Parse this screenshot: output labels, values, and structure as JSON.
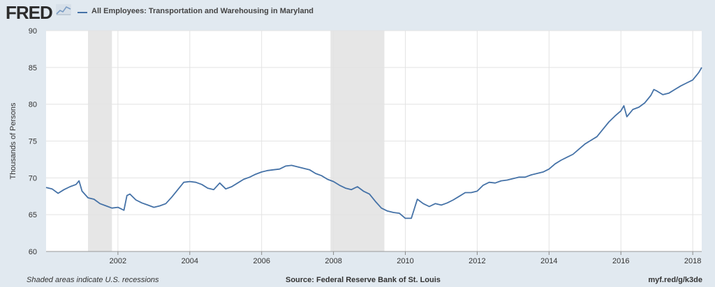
{
  "header": {
    "logo": "FRED",
    "logo_icon": "line-chart-icon"
  },
  "footer": {
    "recession_note": "Shaded areas indicate U.S. recessions",
    "source": "Source: Federal Reserve Bank of St. Louis",
    "short_url": "myf.red/g/k3de"
  },
  "colors": {
    "background": "#e1e9f0",
    "plot_background": "#ffffff",
    "series": "#4572a7",
    "recession_shade": "#e6e6e6",
    "grid": "#e3e3e3"
  },
  "chart_data": {
    "type": "line",
    "title": "",
    "xlabel": "",
    "ylabel": "Thousands of Persons",
    "ylim": [
      60,
      90
    ],
    "yticks": [
      60,
      65,
      70,
      75,
      80,
      85,
      90
    ],
    "xlim": [
      "2000-01",
      "2018-04"
    ],
    "xticks": [
      "2002",
      "2004",
      "2006",
      "2008",
      "2010",
      "2012",
      "2014",
      "2016",
      "2018"
    ],
    "grid": true,
    "legend": "top-left",
    "recessions": [
      [
        "2001-03",
        "2001-11"
      ],
      [
        "2007-12",
        "2009-06"
      ]
    ],
    "series": [
      {
        "name": "All Employees: Transportation and Warehousing in Maryland",
        "points": [
          [
            "2000-01",
            68.7
          ],
          [
            "2000-03",
            68.5
          ],
          [
            "2000-05",
            67.9
          ],
          [
            "2000-07",
            68.4
          ],
          [
            "2000-09",
            68.8
          ],
          [
            "2000-11",
            69.1
          ],
          [
            "2000-12",
            69.6
          ],
          [
            "2001-01",
            68.2
          ],
          [
            "2001-03",
            67.3
          ],
          [
            "2001-05",
            67.1
          ],
          [
            "2001-07",
            66.5
          ],
          [
            "2001-09",
            66.2
          ],
          [
            "2001-11",
            65.9
          ],
          [
            "2002-01",
            66.0
          ],
          [
            "2002-03",
            65.6
          ],
          [
            "2002-04",
            67.6
          ],
          [
            "2002-05",
            67.8
          ],
          [
            "2002-07",
            67.0
          ],
          [
            "2002-09",
            66.6
          ],
          [
            "2002-11",
            66.3
          ],
          [
            "2003-01",
            66.0
          ],
          [
            "2003-03",
            66.2
          ],
          [
            "2003-05",
            66.5
          ],
          [
            "2003-07",
            67.4
          ],
          [
            "2003-09",
            68.4
          ],
          [
            "2003-11",
            69.4
          ],
          [
            "2004-01",
            69.5
          ],
          [
            "2004-03",
            69.4
          ],
          [
            "2004-05",
            69.1
          ],
          [
            "2004-07",
            68.6
          ],
          [
            "2004-09",
            68.4
          ],
          [
            "2004-11",
            69.3
          ],
          [
            "2005-01",
            68.5
          ],
          [
            "2005-03",
            68.8
          ],
          [
            "2005-05",
            69.3
          ],
          [
            "2005-07",
            69.8
          ],
          [
            "2005-09",
            70.1
          ],
          [
            "2005-11",
            70.5
          ],
          [
            "2006-01",
            70.8
          ],
          [
            "2006-03",
            71.0
          ],
          [
            "2006-05",
            71.1
          ],
          [
            "2006-07",
            71.2
          ],
          [
            "2006-09",
            71.6
          ],
          [
            "2006-11",
            71.7
          ],
          [
            "2007-01",
            71.5
          ],
          [
            "2007-03",
            71.3
          ],
          [
            "2007-05",
            71.1
          ],
          [
            "2007-07",
            70.6
          ],
          [
            "2007-09",
            70.3
          ],
          [
            "2007-11",
            69.8
          ],
          [
            "2008-01",
            69.5
          ],
          [
            "2008-03",
            69.0
          ],
          [
            "2008-05",
            68.6
          ],
          [
            "2008-07",
            68.4
          ],
          [
            "2008-09",
            68.8
          ],
          [
            "2008-11",
            68.2
          ],
          [
            "2009-01",
            67.8
          ],
          [
            "2009-03",
            66.8
          ],
          [
            "2009-05",
            65.9
          ],
          [
            "2009-07",
            65.5
          ],
          [
            "2009-09",
            65.3
          ],
          [
            "2009-11",
            65.2
          ],
          [
            "2010-01",
            64.5
          ],
          [
            "2010-03",
            64.5
          ],
          [
            "2010-05",
            67.1
          ],
          [
            "2010-07",
            66.5
          ],
          [
            "2010-09",
            66.1
          ],
          [
            "2010-11",
            66.5
          ],
          [
            "2011-01",
            66.3
          ],
          [
            "2011-03",
            66.6
          ],
          [
            "2011-05",
            67.0
          ],
          [
            "2011-07",
            67.5
          ],
          [
            "2011-09",
            68.0
          ],
          [
            "2011-11",
            68.0
          ],
          [
            "2012-01",
            68.2
          ],
          [
            "2012-03",
            69.0
          ],
          [
            "2012-05",
            69.4
          ],
          [
            "2012-07",
            69.3
          ],
          [
            "2012-09",
            69.6
          ],
          [
            "2012-11",
            69.7
          ],
          [
            "2013-01",
            69.9
          ],
          [
            "2013-03",
            70.1
          ],
          [
            "2013-05",
            70.1
          ],
          [
            "2013-07",
            70.4
          ],
          [
            "2013-09",
            70.6
          ],
          [
            "2013-11",
            70.8
          ],
          [
            "2014-01",
            71.2
          ],
          [
            "2014-03",
            71.9
          ],
          [
            "2014-05",
            72.4
          ],
          [
            "2014-07",
            72.8
          ],
          [
            "2014-09",
            73.2
          ],
          [
            "2014-11",
            73.9
          ],
          [
            "2015-01",
            74.6
          ],
          [
            "2015-03",
            75.1
          ],
          [
            "2015-05",
            75.6
          ],
          [
            "2015-07",
            76.6
          ],
          [
            "2015-09",
            77.6
          ],
          [
            "2015-11",
            78.4
          ],
          [
            "2016-01",
            79.1
          ],
          [
            "2016-02",
            79.8
          ],
          [
            "2016-03",
            78.3
          ],
          [
            "2016-05",
            79.3
          ],
          [
            "2016-07",
            79.6
          ],
          [
            "2016-09",
            80.2
          ],
          [
            "2016-11",
            81.2
          ],
          [
            "2016-12",
            82.0
          ],
          [
            "2017-01",
            81.8
          ],
          [
            "2017-03",
            81.3
          ],
          [
            "2017-05",
            81.5
          ],
          [
            "2017-07",
            82.0
          ],
          [
            "2017-09",
            82.5
          ],
          [
            "2017-11",
            82.9
          ],
          [
            "2018-01",
            83.3
          ],
          [
            "2018-03",
            84.3
          ],
          [
            "2018-04",
            85.0
          ]
        ]
      }
    ]
  }
}
